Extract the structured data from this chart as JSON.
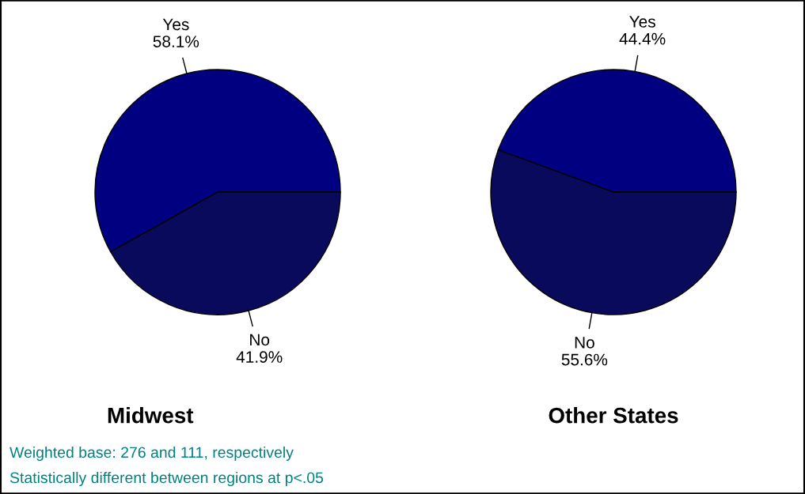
{
  "chart_data": [
    {
      "type": "pie",
      "title": "Midwest",
      "categories": [
        "Yes",
        "No"
      ],
      "values": [
        58.1,
        41.9
      ],
      "colors": [
        "#000080",
        "#0a0a5c"
      ],
      "value_labels": [
        "58.1%",
        "41.9%"
      ],
      "annotations": [
        "Weighted base: 276 and 111, respectively",
        "Statistically different between regions at p<.05"
      ]
    },
    {
      "type": "pie",
      "title": "Other States",
      "categories": [
        "Yes",
        "No"
      ],
      "values": [
        44.4,
        55.6
      ],
      "colors": [
        "#000080",
        "#0a0a5c"
      ],
      "value_labels": [
        "44.4%",
        "55.6%"
      ]
    }
  ]
}
